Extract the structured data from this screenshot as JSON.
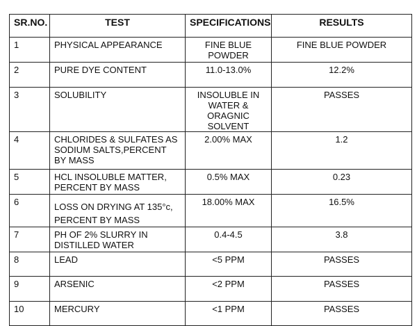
{
  "table": {
    "headers": [
      "SR.NO.",
      "TEST",
      "SPECIFICATIONS",
      "RESULTS"
    ],
    "rows": [
      [
        "1",
        "PHYSICAL APPEARANCE",
        "FINE BLUE POWDER",
        "FINE BLUE POWDER"
      ],
      [
        "2",
        "PURE DYE CONTENT",
        "11.0-13.0%",
        "12.2%"
      ],
      [
        "3",
        "SOLUBILITY",
        "INSOLUBLE IN WATER & ORAGNIC SOLVENT",
        "PASSES"
      ],
      [
        "4",
        "CHLORIDES  &  SULFATES AS SODIUM SALTS,PERCENT BY MASS",
        "2.00%  MAX",
        "1.2"
      ],
      [
        "5",
        "HCL INSOLUBLE MATTER, PERCENT BY MASS",
        "0.5% MAX",
        "0.23"
      ],
      [
        "6",
        "LOSS ON DRYING AT 135°c, PERCENT BY MASS",
        "18.00% MAX",
        "16.5%"
      ],
      [
        "7",
        "PH OF 2% SLURRY IN DISTILLED WATER",
        "0.4-4.5",
        "3.8"
      ],
      [
        "8",
        "LEAD",
        "<5 PPM",
        "PASSES"
      ],
      [
        "9",
        "ARSENIC",
        "<2 PPM",
        "PASSES"
      ],
      [
        "10",
        "MERCURY",
        "<1 PPM",
        "PASSES"
      ]
    ]
  }
}
